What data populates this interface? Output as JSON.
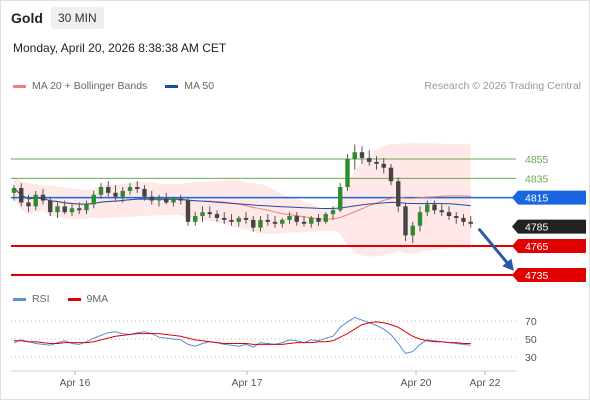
{
  "header": {
    "instrument": "Gold",
    "timeframe": "30 MIN",
    "datetime": "Monday, April 20, 2026 8:38:38 AM CET"
  },
  "legend": {
    "items": [
      {
        "label": "MA 20 + Bollinger Bands",
        "color": "#f08080"
      },
      {
        "label": "MA 50",
        "color": "#1f4e9c"
      }
    ],
    "credit": "Research © 2026 Trading Central"
  },
  "rsi_legend": {
    "items": [
      {
        "label": "RSI",
        "color": "#5b8fd6"
      },
      {
        "label": "9MA",
        "color": "#e00000"
      }
    ]
  },
  "chart_data": [
    {
      "type": "candlestick",
      "title": "Gold",
      "timeframe": "30 MIN",
      "x_tick_labels": [
        "Apr 16",
        "Apr 17",
        "Apr 20",
        "Apr 22"
      ],
      "candles_ohlc": [
        [
          4820,
          4828,
          4812,
          4825
        ],
        [
          4825,
          4830,
          4806,
          4810
        ],
        [
          4810,
          4818,
          4800,
          4806
        ],
        [
          4806,
          4822,
          4802,
          4818
        ],
        [
          4818,
          4824,
          4808,
          4812
        ],
        [
          4812,
          4816,
          4796,
          4800
        ],
        [
          4800,
          4810,
          4794,
          4806
        ],
        [
          4806,
          4812,
          4798,
          4800
        ],
        [
          4800,
          4808,
          4796,
          4804
        ],
        [
          4804,
          4810,
          4798,
          4802
        ],
        [
          4802,
          4812,
          4798,
          4808
        ],
        [
          4808,
          4822,
          4804,
          4818
        ],
        [
          4818,
          4830,
          4814,
          4826
        ],
        [
          4826,
          4832,
          4816,
          4820
        ],
        [
          4820,
          4828,
          4812,
          4816
        ],
        [
          4816,
          4826,
          4810,
          4822
        ],
        [
          4822,
          4830,
          4818,
          4826
        ],
        [
          4826,
          4832,
          4820,
          4824
        ],
        [
          4824,
          4828,
          4812,
          4816
        ],
        [
          4816,
          4822,
          4808,
          4812
        ],
        [
          4812,
          4818,
          4806,
          4814
        ],
        [
          4814,
          4820,
          4808,
          4810
        ],
        [
          4810,
          4816,
          4806,
          4814
        ],
        [
          4814,
          4818,
          4808,
          4812
        ],
        [
          4812,
          4814,
          4786,
          4790
        ],
        [
          4790,
          4800,
          4786,
          4796
        ],
        [
          4796,
          4806,
          4790,
          4800
        ],
        [
          4800,
          4806,
          4794,
          4798
        ],
        [
          4798,
          4802,
          4790,
          4794
        ],
        [
          4794,
          4800,
          4788,
          4792
        ],
        [
          4792,
          4798,
          4786,
          4790
        ],
        [
          4790,
          4796,
          4785,
          4794
        ],
        [
          4794,
          4800,
          4788,
          4792
        ],
        [
          4792,
          4796,
          4780,
          4784
        ],
        [
          4784,
          4796,
          4780,
          4792
        ],
        [
          4792,
          4798,
          4786,
          4790
        ],
        [
          4790,
          4796,
          4784,
          4788
        ],
        [
          4788,
          4794,
          4784,
          4792
        ],
        [
          4792,
          4800,
          4788,
          4796
        ],
        [
          4796,
          4800,
          4786,
          4790
        ],
        [
          4790,
          4796,
          4785,
          4788
        ],
        [
          4788,
          4796,
          4784,
          4794
        ],
        [
          4794,
          4798,
          4786,
          4790
        ],
        [
          4790,
          4800,
          4788,
          4798
        ],
        [
          4798,
          4806,
          4792,
          4802
        ],
        [
          4802,
          4830,
          4800,
          4826
        ],
        [
          4826,
          4860,
          4822,
          4855
        ],
        [
          4855,
          4870,
          4844,
          4862
        ],
        [
          4862,
          4868,
          4850,
          4856
        ],
        [
          4856,
          4864,
          4848,
          4852
        ],
        [
          4852,
          4858,
          4844,
          4850
        ],
        [
          4850,
          4856,
          4840,
          4846
        ],
        [
          4846,
          4850,
          4828,
          4832
        ],
        [
          4832,
          4836,
          4800,
          4806
        ],
        [
          4806,
          4810,
          4770,
          4776
        ],
        [
          4776,
          4790,
          4768,
          4786
        ],
        [
          4786,
          4806,
          4780,
          4800
        ],
        [
          4800,
          4812,
          4796,
          4808
        ],
        [
          4808,
          4812,
          4798,
          4802
        ],
        [
          4802,
          4808,
          4796,
          4800
        ],
        [
          4800,
          4806,
          4792,
          4796
        ],
        [
          4796,
          4800,
          4788,
          4794
        ],
        [
          4794,
          4798,
          4786,
          4790
        ],
        [
          4790,
          4796,
          4784,
          4788
        ]
      ],
      "horizontal_levels": [
        {
          "value": 4855,
          "style": "thin",
          "color": "#6aa84f"
        },
        {
          "value": 4835,
          "style": "thin",
          "color": "#6aa84f"
        },
        {
          "value": 4815,
          "style": "pivot",
          "color": "#1a66e0"
        },
        {
          "value": 4785,
          "style": "last-price",
          "color": "#222222"
        },
        {
          "value": 4765,
          "style": "support",
          "color": "#e00000"
        },
        {
          "value": 4735,
          "style": "support",
          "color": "#e00000"
        }
      ],
      "forecast_arrow": {
        "from_value": 4785,
        "to_value": 4740,
        "color": "#2a58a8"
      },
      "overlays": [
        "MA 20 + Bollinger Bands",
        "MA 50"
      ]
    },
    {
      "type": "line",
      "series": [
        {
          "name": "RSI",
          "values": [
            46,
            49,
            47,
            45,
            44,
            43,
            46,
            48,
            45,
            44,
            47,
            51,
            54,
            57,
            58,
            56,
            55,
            57,
            58,
            56,
            52,
            51,
            50,
            49,
            44,
            42,
            45,
            47,
            46,
            44,
            43,
            42,
            44,
            41,
            46,
            45,
            44,
            46,
            49,
            48,
            46,
            49,
            48,
            51,
            53,
            63,
            69,
            74,
            71,
            68,
            65,
            61,
            55,
            45,
            34,
            36,
            44,
            49,
            48,
            47,
            46,
            45,
            44,
            43
          ]
        },
        {
          "name": "9MA",
          "values": [
            48,
            48,
            47,
            47,
            46,
            45,
            45,
            46,
            46,
            46,
            46,
            47,
            49,
            51,
            53,
            54,
            55,
            56,
            56,
            56,
            56,
            55,
            54,
            53,
            51,
            49,
            48,
            47,
            46,
            45,
            45,
            45,
            45,
            44,
            44,
            44,
            44,
            44,
            45,
            46,
            46,
            46,
            47,
            47,
            48,
            52,
            56,
            61,
            66,
            68,
            69,
            68,
            66,
            63,
            58,
            53,
            50,
            48,
            47,
            47,
            46,
            46,
            45,
            45
          ]
        }
      ],
      "y_tick_labels": [
        "70",
        "50",
        "30"
      ],
      "ylim": [
        20,
        80
      ]
    }
  ]
}
